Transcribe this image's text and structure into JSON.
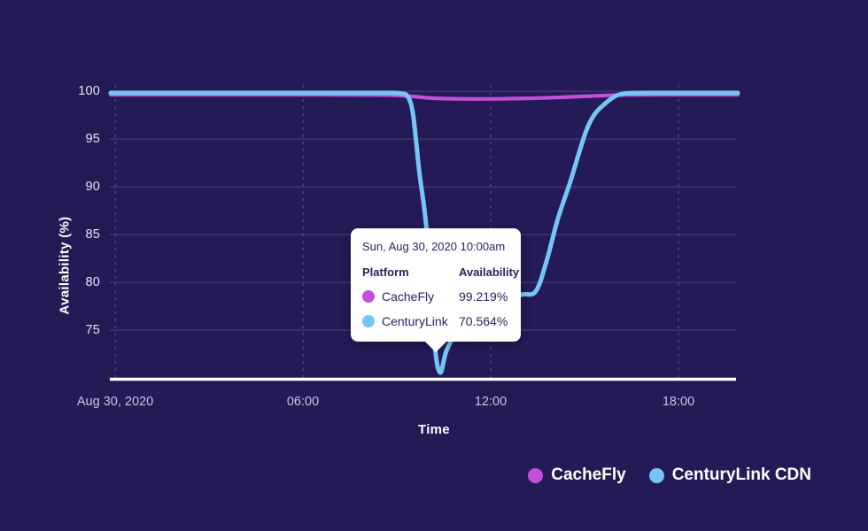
{
  "colors": {
    "background": "#241a56",
    "axis": "#ffffff",
    "grid_horizontal": "rgba(255,255,255,0.10)",
    "grid_vertical": "rgba(255,255,255,0.18)",
    "cachefly": "#c44fd8",
    "centurylink": "#74c7f3",
    "tooltip_bg": "#ffffff",
    "tooltip_text": "#2b2160"
  },
  "chart_data": {
    "type": "line",
    "title": "",
    "xlabel": "Time",
    "ylabel": "Availability (%)",
    "x_unit": "hours from start of Aug 30, 2020",
    "xlim": [
      -0.15,
      19.9
    ],
    "ylim": [
      70,
      101.6
    ],
    "grid": {
      "horizontal": "solid",
      "vertical": "dashed"
    },
    "legend_position": "bottom-right",
    "yticks": [
      {
        "label": "100",
        "value": 100
      },
      {
        "label": "95",
        "value": 95
      },
      {
        "label": "90",
        "value": 90
      },
      {
        "label": "85",
        "value": 85
      },
      {
        "label": "80",
        "value": 80
      },
      {
        "label": "75",
        "value": 75
      }
    ],
    "xticks": [
      {
        "label": "Aug 30, 2020",
        "value": 0
      },
      {
        "label": "06:00",
        "value": 6
      },
      {
        "label": "12:00",
        "value": 12
      },
      {
        "label": "18:00",
        "value": 18
      }
    ],
    "series": [
      {
        "name": "CacheFly",
        "color": "#c44fd8",
        "points": [
          [
            -0.15,
            99.65
          ],
          [
            3.0,
            99.65
          ],
          [
            6.0,
            99.65
          ],
          [
            8.6,
            99.62
          ],
          [
            9.4,
            99.5
          ],
          [
            10.0,
            99.32
          ],
          [
            10.7,
            99.24
          ],
          [
            11.5,
            99.21
          ],
          [
            12.3,
            99.22
          ],
          [
            13.2,
            99.27
          ],
          [
            14.2,
            99.38
          ],
          [
            15.1,
            99.5
          ],
          [
            15.9,
            99.6
          ],
          [
            16.5,
            99.64
          ],
          [
            17.5,
            99.65
          ],
          [
            19.9,
            99.65
          ]
        ]
      },
      {
        "name": "CenturyLink CDN",
        "color": "#74c7f3",
        "points": [
          [
            -0.15,
            99.84
          ],
          [
            3.0,
            99.84
          ],
          [
            6.0,
            99.84
          ],
          [
            8.6,
            99.84
          ],
          [
            9.1,
            99.78
          ],
          [
            9.35,
            99.45
          ],
          [
            9.52,
            97.5
          ],
          [
            9.72,
            91.5
          ],
          [
            9.95,
            85.5
          ],
          [
            10.2,
            73.8
          ],
          [
            10.38,
            70.56
          ],
          [
            10.58,
            72.8
          ],
          [
            10.9,
            74.8
          ],
          [
            11.35,
            76.5
          ],
          [
            12.05,
            77.9
          ],
          [
            12.6,
            78.5
          ],
          [
            13.05,
            78.75
          ],
          [
            13.45,
            79.1
          ],
          [
            13.8,
            82.4
          ],
          [
            14.15,
            86.7
          ],
          [
            14.55,
            90.6
          ],
          [
            15.0,
            95.4
          ],
          [
            15.3,
            97.5
          ],
          [
            15.65,
            98.7
          ],
          [
            16.05,
            99.6
          ],
          [
            16.55,
            99.82
          ],
          [
            17.5,
            99.84
          ],
          [
            19.9,
            99.84
          ]
        ]
      }
    ]
  },
  "tooltip": {
    "title": "Sun, Aug 30, 2020 10:00am",
    "col_platform": "Platform",
    "col_availability": "Availability",
    "rows": [
      {
        "platform": "CacheFly",
        "availability": "99.219%",
        "color": "#c44fd8"
      },
      {
        "platform": "CenturyLink",
        "availability": "70.564%",
        "color": "#74c7f3"
      }
    ]
  },
  "legend": {
    "items": [
      {
        "label": "CacheFly",
        "color": "#c44fd8"
      },
      {
        "label": "CenturyLink CDN",
        "color": "#74c7f3"
      }
    ]
  }
}
